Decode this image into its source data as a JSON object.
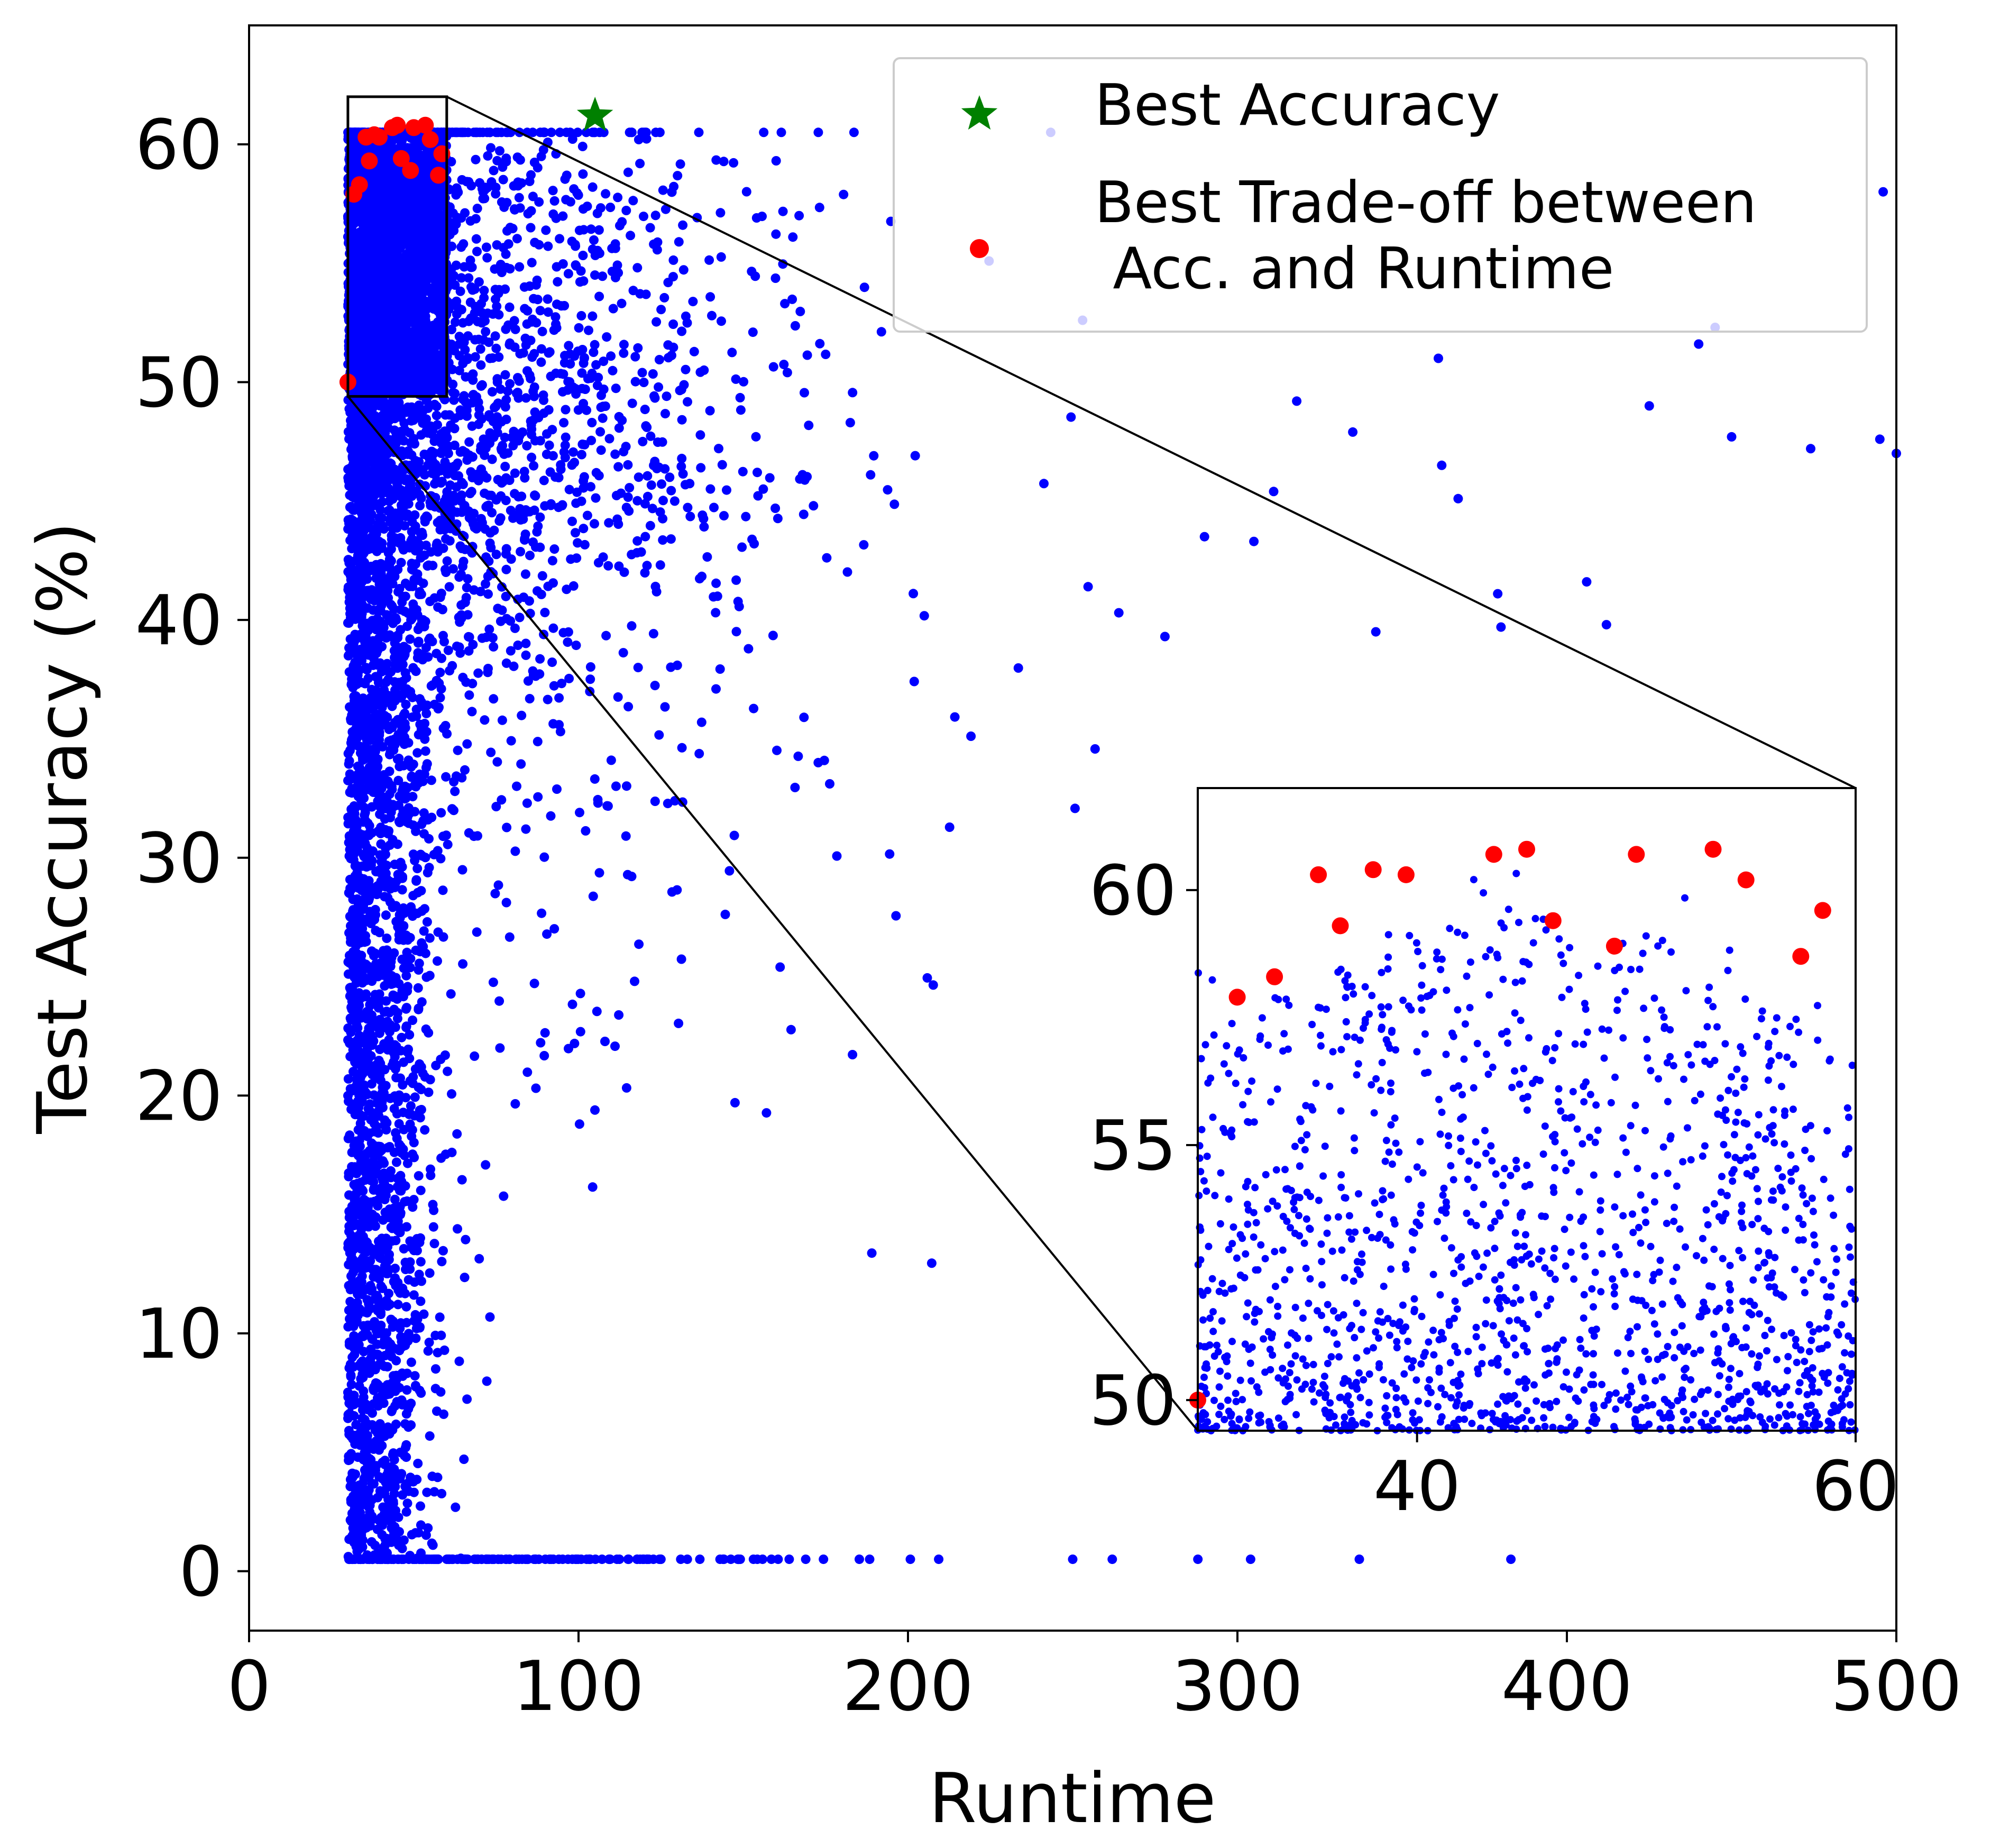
{
  "chart_data": {
    "type": "scatter",
    "xlabel": "Runtime",
    "ylabel": "Test Accuracy (%)",
    "xlim": [
      0,
      500
    ],
    "ylim": [
      -2.5,
      65
    ],
    "xticks": [
      0,
      100,
      200,
      300,
      400,
      500
    ],
    "yticks": [
      0,
      10,
      20,
      30,
      40,
      50,
      60
    ],
    "grid": false,
    "legend_position": "top-right",
    "colors": {
      "cloud": "#0000ff",
      "pareto": "#ff0000",
      "best": "#008000"
    },
    "series": [
      {
        "name": "Best Accuracy",
        "marker": "star",
        "color": "#008000",
        "points": [
          [
            105,
            61.2
          ]
        ]
      },
      {
        "name": "Best Trade-off between\n Acc. and Runtime",
        "marker": "circle",
        "color": "#ff0000",
        "points": [
          [
            30,
            50.0
          ],
          [
            31.8,
            57.9
          ],
          [
            33.5,
            58.3
          ],
          [
            35.5,
            60.3
          ],
          [
            36.5,
            59.3
          ],
          [
            38.0,
            60.4
          ],
          [
            39.5,
            60.3
          ],
          [
            43.5,
            60.7
          ],
          [
            45.0,
            60.8
          ],
          [
            46.2,
            59.4
          ],
          [
            49.0,
            58.9
          ],
          [
            50.0,
            60.7
          ],
          [
            53.5,
            60.8
          ],
          [
            55.0,
            60.2
          ],
          [
            57.5,
            58.7
          ],
          [
            58.5,
            59.6
          ]
        ]
      },
      {
        "name": "",
        "marker": "dot",
        "color": "#0000ff",
        "description_is_generated": true,
        "outliers": [
          [
            445,
            52.3
          ],
          [
            496,
            58.0
          ],
          [
            495,
            47.6
          ],
          [
            474,
            47.2
          ],
          [
            500,
            47.0
          ],
          [
            450,
            47.7
          ],
          [
            440,
            51.6
          ],
          [
            425,
            49.0
          ],
          [
            412,
            39.8
          ],
          [
            406,
            41.6
          ],
          [
            380,
            39.7
          ],
          [
            367,
            45.1
          ],
          [
            361,
            51.0
          ],
          [
            362,
            46.5
          ],
          [
            379,
            41.1
          ],
          [
            342,
            39.5
          ],
          [
            335,
            47.9
          ],
          [
            318,
            49.2
          ],
          [
            311,
            45.4
          ],
          [
            305,
            43.3
          ],
          [
            290,
            43.5
          ],
          [
            278,
            39.3
          ],
          [
            264,
            40.3
          ],
          [
            253,
            52.6
          ],
          [
            383,
            0.5
          ],
          [
            337,
            0.5
          ],
          [
            304,
            0.5
          ],
          [
            288,
            0.5
          ],
          [
            262,
            0.5
          ],
          [
            250,
            0.5
          ]
        ]
      }
    ],
    "inset": {
      "xlim": [
        30,
        60
      ],
      "ylim": [
        49.4,
        62
      ],
      "xticks": [
        40,
        60
      ],
      "yticks": [
        50,
        55,
        60
      ]
    }
  }
}
